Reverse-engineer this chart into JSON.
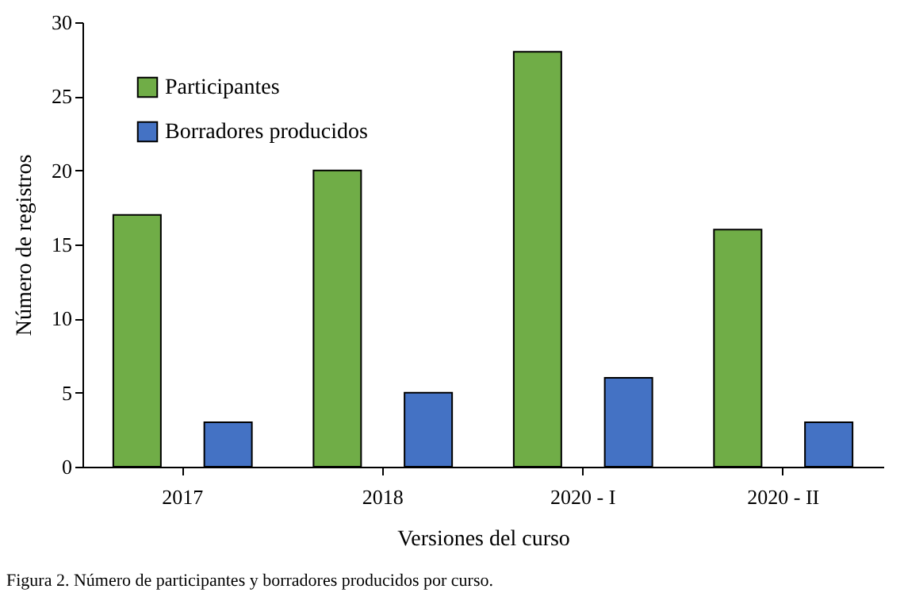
{
  "chart_data": {
    "type": "bar",
    "xlabel": "Versiones del curso",
    "ylabel": "Número de registros",
    "categories": [
      "2017",
      "2018",
      "2020 - I",
      "2020 - II"
    ],
    "series": [
      {
        "name": "Participantes",
        "color": "#70ad47",
        "values": [
          17,
          20,
          28,
          16
        ]
      },
      {
        "name": "Borradores producidos",
        "color": "#4472c4",
        "values": [
          3,
          5,
          6,
          3
        ]
      }
    ],
    "ylim": [
      0,
      30
    ],
    "yticks": [
      0,
      5,
      10,
      15,
      20,
      25,
      30
    ],
    "grid": false,
    "legend": "top left",
    "annotations": [
      "Figura 2. Número de participantes y borradores producidos por curso."
    ]
  }
}
